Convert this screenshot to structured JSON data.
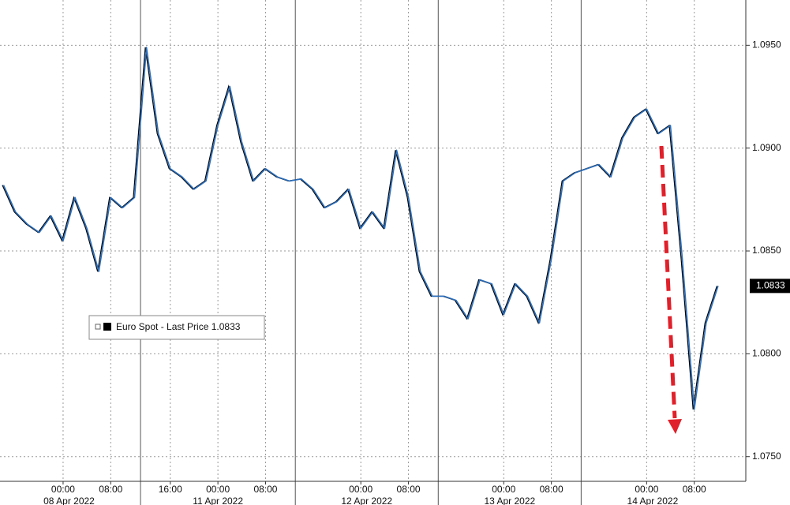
{
  "chart_data": {
    "type": "line",
    "categories": [
      null,
      null,
      null,
      null,
      null,
      "00:00",
      null,
      null,
      null,
      "08:00",
      null,
      null,
      null,
      null,
      "16:00",
      null,
      null,
      null,
      "00:00",
      null,
      null,
      null,
      "08:00",
      null,
      null,
      null,
      null,
      null,
      null,
      null,
      "00:00",
      null,
      null,
      null,
      "08:00",
      null,
      null,
      null,
      null,
      null,
      null,
      null,
      "00:00",
      null,
      null,
      null,
      "08:00",
      null,
      null,
      null,
      null,
      null,
      null,
      null,
      "00:00",
      null,
      null,
      null,
      "08:00",
      null,
      null
    ],
    "category_groups": [
      {
        "label": "08 Apr 2022",
        "count": 12
      },
      {
        "label": "11 Apr 2022",
        "count": 13
      },
      {
        "label": "12 Apr 2022",
        "count": 12
      },
      {
        "label": "13 Apr 2022",
        "count": 12
      },
      {
        "label": "14 Apr 2022",
        "count": 12
      }
    ],
    "series": [
      {
        "name": "Euro Spot - Last Price",
        "color": "#2a6ebd",
        "values": [
          1.0882,
          1.0869,
          1.0863,
          1.0859,
          1.0867,
          1.0855,
          1.0876,
          1.0861,
          1.084,
          1.0876,
          1.0871,
          1.0876,
          1.0949,
          1.0907,
          1.089,
          1.0886,
          1.088,
          1.0884,
          1.0911,
          1.093,
          1.0903,
          1.0884,
          1.089,
          1.0886,
          1.0884,
          1.0885,
          1.088,
          1.0871,
          1.0874,
          1.088,
          1.0861,
          1.0869,
          1.0861,
          1.0899,
          1.0876,
          1.084,
          1.0828,
          1.0828,
          1.0826,
          1.0817,
          1.0836,
          1.0834,
          1.0819,
          1.0834,
          1.0828,
          1.0815,
          1.0846,
          1.0884,
          1.0888,
          1.089,
          1.0892,
          1.0886,
          1.0905,
          1.0915,
          1.0919,
          1.0907,
          1.0911,
          1.0846,
          1.0773,
          1.0815,
          1.0833
        ]
      }
    ],
    "last_value": 1.0833,
    "ylim": [
      1.0738,
      1.0972
    ],
    "yticks": [
      {
        "value": 1.075,
        "label": "1.0750"
      },
      {
        "value": 1.08,
        "label": "1.0800"
      },
      {
        "value": 1.085,
        "label": "1.0850"
      },
      {
        "value": 1.09,
        "label": "1.0900"
      },
      {
        "value": 1.095,
        "label": "1.0950"
      }
    ],
    "grid": true
  }
}
